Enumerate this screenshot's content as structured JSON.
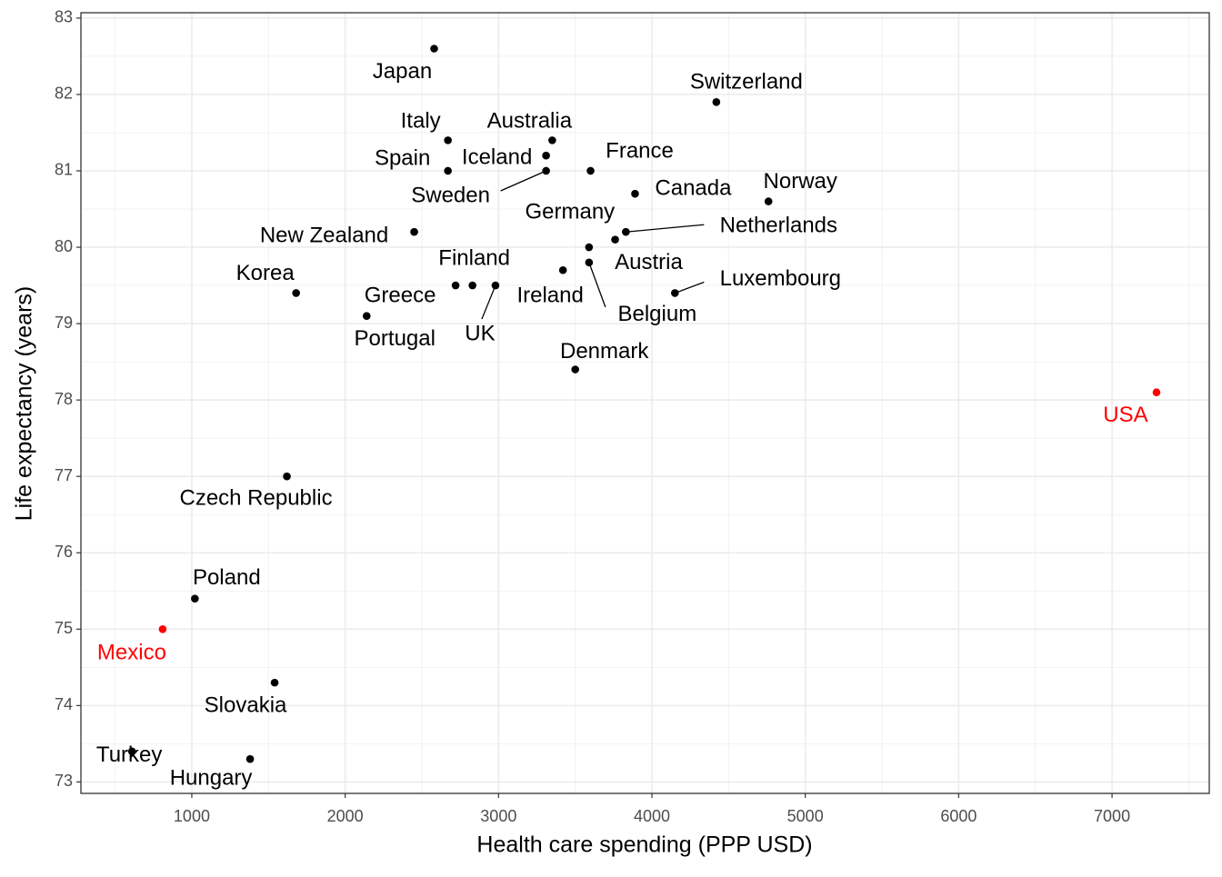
{
  "chart_data": {
    "type": "scatter",
    "x_label": "Health care spending (PPP USD)",
    "y_label": "Life expectancy (years)",
    "labels": [
      "Japan",
      "Switzerland",
      "Italy",
      "Australia",
      "Iceland",
      "Spain",
      "Sweden",
      "France",
      "Canada",
      "Norway",
      "Netherlands",
      "Germany",
      "Austria",
      "Ireland",
      "Belgium",
      "New Zealand",
      "Korea",
      "Finland",
      "Greece",
      "UK",
      "Portugal",
      "Denmark",
      "Luxembourg",
      "USA",
      "Czech Republic",
      "Poland",
      "Mexico",
      "Slovakia",
      "Turkey",
      "Hungary"
    ],
    "x": [
      2580,
      4420,
      2670,
      3350,
      3310,
      2670,
      3310,
      3600,
      3890,
      4760,
      3830,
      3590,
      3760,
      3420,
      3590,
      2450,
      1680,
      2830,
      2720,
      2980,
      2140,
      3500,
      4150,
      7290,
      1620,
      1020,
      810,
      1540,
      610,
      1380
    ],
    "values": [
      82.6,
      81.9,
      81.4,
      81.4,
      81.2,
      81.0,
      81.0,
      81.0,
      80.7,
      80.6,
      80.2,
      80.0,
      80.1,
      79.7,
      79.8,
      80.2,
      79.4,
      79.5,
      79.5,
      79.5,
      79.1,
      78.4,
      79.4,
      78.1,
      77.0,
      75.4,
      75.0,
      74.3,
      73.4,
      73.3
    ],
    "colors": [
      "#000000",
      "#000000",
      "#000000",
      "#000000",
      "#000000",
      "#000000",
      "#000000",
      "#000000",
      "#000000",
      "#000000",
      "#000000",
      "#000000",
      "#000000",
      "#000000",
      "#000000",
      "#000000",
      "#000000",
      "#000000",
      "#000000",
      "#000000",
      "#000000",
      "#000000",
      "#000000",
      "#ff0000",
      "#000000",
      "#000000",
      "#ff0000",
      "#000000",
      "#000000",
      "#000000"
    ],
    "xlim": [
      277,
      7634
    ],
    "ylim": [
      72.85,
      83.07
    ],
    "xticks": [
      1000,
      2000,
      3000,
      4000,
      5000,
      6000,
      7000
    ],
    "yticks": [
      73,
      74,
      75,
      76,
      77,
      78,
      79,
      80,
      81,
      82,
      83
    ],
    "grid": true
  }
}
